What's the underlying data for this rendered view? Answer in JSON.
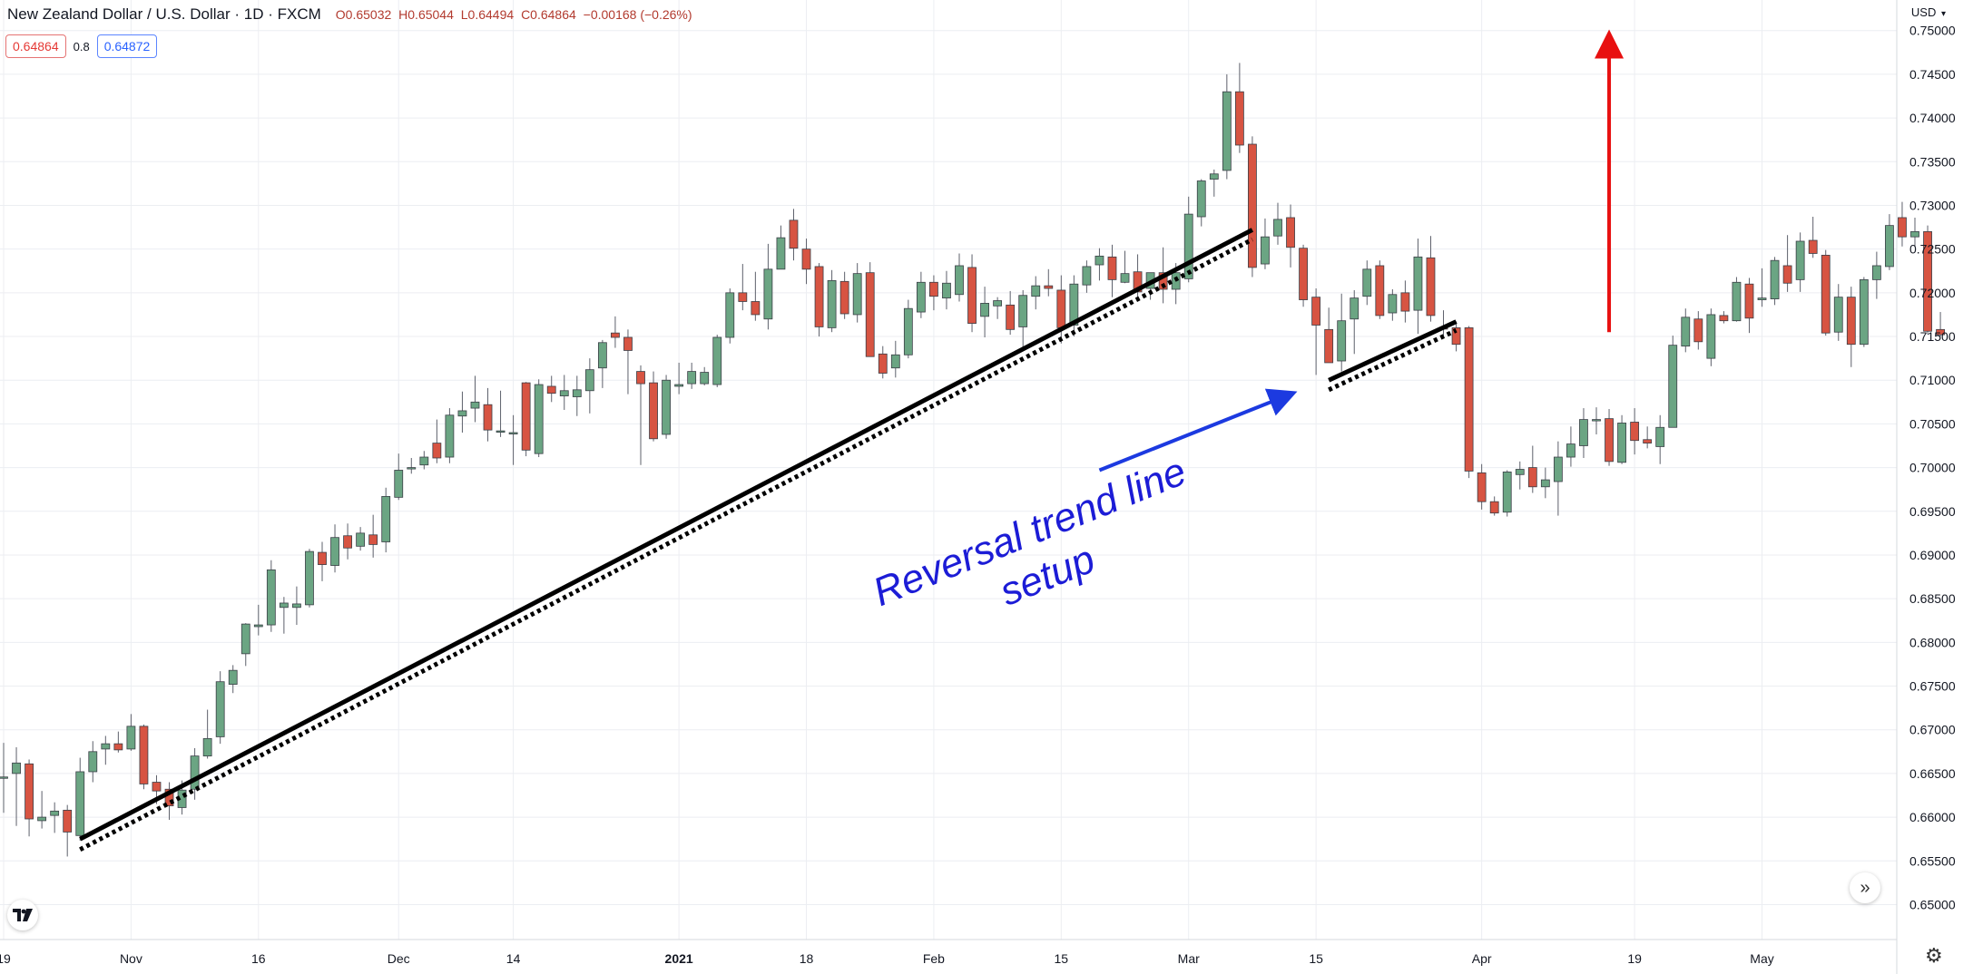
{
  "header": {
    "symbol_title": "New Zealand Dollar / U.S. Dollar · 1D · FXCM",
    "ohlc": {
      "open": "O0.65032",
      "high": "H0.65044",
      "low": "L0.64494",
      "close": "C0.64864",
      "change": "−0.00168 (−0.26%)"
    },
    "sell_price": "0.64864",
    "spread": "0.8",
    "buy_price": "0.64872"
  },
  "currency_label": "USD",
  "icons": {
    "currency_dropdown": "chevron-down-icon",
    "logo": "tradingview-logo-icon",
    "scroll": "scroll-to-realtime-icon",
    "settings": "gear-icon"
  },
  "colors": {
    "up_candle": "#6ba583",
    "down_candle": "#d75442",
    "wick": "#5d606b",
    "trendline": "#000000",
    "annotation_text": "#1c1cd6",
    "annotation_arrow": "#1c3ae0",
    "target_arrow": "#e81010",
    "grid": "#eceef2"
  },
  "chart_data": {
    "type": "candlestick",
    "title": "",
    "symbol": "NZD/USD",
    "timeframe": "1D",
    "y_axis": {
      "ylim": [
        0.646,
        0.7535
      ],
      "ticks": [
        "0.75000",
        "0.74500",
        "0.74000",
        "0.73500",
        "0.73000",
        "0.72500",
        "0.72000",
        "0.71500",
        "0.71000",
        "0.70500",
        "0.70000",
        "0.69500",
        "0.69000",
        "0.68500",
        "0.68000",
        "0.67500",
        "0.67000",
        "0.66500",
        "0.66000",
        "0.65500",
        "0.65000"
      ],
      "side": "right",
      "grid": true
    },
    "x_axis": {
      "ticks": [
        {
          "label": "19",
          "bar": 0,
          "bold": false
        },
        {
          "label": "Nov",
          "bar": 10,
          "bold": false
        },
        {
          "label": "16",
          "bar": 20,
          "bold": false
        },
        {
          "label": "Dec",
          "bar": 31,
          "bold": false
        },
        {
          "label": "14",
          "bar": 40,
          "bold": false
        },
        {
          "label": "2021",
          "bar": 53,
          "bold": true
        },
        {
          "label": "18",
          "bar": 63,
          "bold": false
        },
        {
          "label": "Feb",
          "bar": 73,
          "bold": false
        },
        {
          "label": "15",
          "bar": 83,
          "bold": false
        },
        {
          "label": "Mar",
          "bar": 93,
          "bold": false
        },
        {
          "label": "15",
          "bar": 103,
          "bold": false
        },
        {
          "label": "Apr",
          "bar": 116,
          "bold": false
        },
        {
          "label": "19",
          "bar": 128,
          "bold": false
        },
        {
          "label": "May",
          "bar": 138,
          "bold": false
        }
      ],
      "grid": true
    },
    "candles": [
      {
        "o": 0.6645,
        "h": 0.6685,
        "l": 0.6605,
        "c": 0.6646
      },
      {
        "o": 0.665,
        "h": 0.668,
        "l": 0.659,
        "c": 0.6662
      },
      {
        "o": 0.6661,
        "h": 0.6666,
        "l": 0.6578,
        "c": 0.6598
      },
      {
        "o": 0.6596,
        "h": 0.663,
        "l": 0.6587,
        "c": 0.66
      },
      {
        "o": 0.6602,
        "h": 0.6617,
        "l": 0.6582,
        "c": 0.6607
      },
      {
        "o": 0.6608,
        "h": 0.6614,
        "l": 0.6555,
        "c": 0.6583
      },
      {
        "o": 0.6579,
        "h": 0.6668,
        "l": 0.6573,
        "c": 0.6652
      },
      {
        "o": 0.6652,
        "h": 0.6687,
        "l": 0.664,
        "c": 0.6675
      },
      {
        "o": 0.6678,
        "h": 0.6693,
        "l": 0.666,
        "c": 0.6684
      },
      {
        "o": 0.6684,
        "h": 0.6698,
        "l": 0.6674,
        "c": 0.6677
      },
      {
        "o": 0.6678,
        "h": 0.6718,
        "l": 0.6676,
        "c": 0.6704
      },
      {
        "o": 0.6704,
        "h": 0.6706,
        "l": 0.6632,
        "c": 0.6638
      },
      {
        "o": 0.664,
        "h": 0.6648,
        "l": 0.6615,
        "c": 0.663
      },
      {
        "o": 0.6632,
        "h": 0.664,
        "l": 0.6597,
        "c": 0.6613
      },
      {
        "o": 0.6611,
        "h": 0.6642,
        "l": 0.6603,
        "c": 0.6631
      },
      {
        "o": 0.6632,
        "h": 0.6679,
        "l": 0.662,
        "c": 0.667
      },
      {
        "o": 0.667,
        "h": 0.6723,
        "l": 0.6667,
        "c": 0.669
      },
      {
        "o": 0.6692,
        "h": 0.6767,
        "l": 0.6684,
        "c": 0.6755
      },
      {
        "o": 0.6752,
        "h": 0.6774,
        "l": 0.6742,
        "c": 0.6768
      },
      {
        "o": 0.6787,
        "h": 0.6822,
        "l": 0.6773,
        "c": 0.6821
      },
      {
        "o": 0.6818,
        "h": 0.6843,
        "l": 0.6808,
        "c": 0.682
      },
      {
        "o": 0.682,
        "h": 0.6894,
        "l": 0.6812,
        "c": 0.6883
      },
      {
        "o": 0.684,
        "h": 0.6852,
        "l": 0.681,
        "c": 0.6845
      },
      {
        "o": 0.684,
        "h": 0.6864,
        "l": 0.682,
        "c": 0.6844
      },
      {
        "o": 0.6843,
        "h": 0.6907,
        "l": 0.684,
        "c": 0.6904
      },
      {
        "o": 0.6903,
        "h": 0.6915,
        "l": 0.687,
        "c": 0.6889
      },
      {
        "o": 0.6888,
        "h": 0.6935,
        "l": 0.688,
        "c": 0.692
      },
      {
        "o": 0.6922,
        "h": 0.6936,
        "l": 0.6895,
        "c": 0.6908
      },
      {
        "o": 0.691,
        "h": 0.6932,
        "l": 0.6905,
        "c": 0.6925
      },
      {
        "o": 0.6923,
        "h": 0.6946,
        "l": 0.6897,
        "c": 0.6912
      },
      {
        "o": 0.6915,
        "h": 0.6977,
        "l": 0.6903,
        "c": 0.6967
      },
      {
        "o": 0.6966,
        "h": 0.7016,
        "l": 0.6963,
        "c": 0.6997
      },
      {
        "o": 0.6999,
        "h": 0.7011,
        "l": 0.6993,
        "c": 0.7
      },
      {
        "o": 0.7003,
        "h": 0.7019,
        "l": 0.6998,
        "c": 0.7012
      },
      {
        "o": 0.7028,
        "h": 0.7055,
        "l": 0.7005,
        "c": 0.7011
      },
      {
        "o": 0.7012,
        "h": 0.7068,
        "l": 0.7005,
        "c": 0.706
      },
      {
        "o": 0.7059,
        "h": 0.7087,
        "l": 0.704,
        "c": 0.7065
      },
      {
        "o": 0.7068,
        "h": 0.7105,
        "l": 0.7052,
        "c": 0.7075
      },
      {
        "o": 0.7072,
        "h": 0.7091,
        "l": 0.703,
        "c": 0.7043
      },
      {
        "o": 0.7041,
        "h": 0.7088,
        "l": 0.7035,
        "c": 0.7042
      },
      {
        "o": 0.704,
        "h": 0.706,
        "l": 0.7003,
        "c": 0.704
      },
      {
        "o": 0.7097,
        "h": 0.7098,
        "l": 0.7013,
        "c": 0.702
      },
      {
        "o": 0.7016,
        "h": 0.7101,
        "l": 0.7012,
        "c": 0.7095
      },
      {
        "o": 0.7093,
        "h": 0.7105,
        "l": 0.7075,
        "c": 0.7085
      },
      {
        "o": 0.7082,
        "h": 0.7106,
        "l": 0.7066,
        "c": 0.7088
      },
      {
        "o": 0.7081,
        "h": 0.7105,
        "l": 0.7059,
        "c": 0.7089
      },
      {
        "o": 0.7088,
        "h": 0.7125,
        "l": 0.7062,
        "c": 0.7112
      },
      {
        "o": 0.7114,
        "h": 0.7146,
        "l": 0.7091,
        "c": 0.7143
      },
      {
        "o": 0.7154,
        "h": 0.7173,
        "l": 0.7137,
        "c": 0.7149
      },
      {
        "o": 0.7149,
        "h": 0.7158,
        "l": 0.7084,
        "c": 0.7134
      },
      {
        "o": 0.711,
        "h": 0.7117,
        "l": 0.7003,
        "c": 0.7096
      },
      {
        "o": 0.7097,
        "h": 0.711,
        "l": 0.703,
        "c": 0.7033
      },
      {
        "o": 0.7038,
        "h": 0.7106,
        "l": 0.7033,
        "c": 0.71
      },
      {
        "o": 0.7093,
        "h": 0.712,
        "l": 0.7084,
        "c": 0.7095
      },
      {
        "o": 0.7096,
        "h": 0.712,
        "l": 0.709,
        "c": 0.711
      },
      {
        "o": 0.7096,
        "h": 0.7115,
        "l": 0.7094,
        "c": 0.7109
      },
      {
        "o": 0.7095,
        "h": 0.7152,
        "l": 0.7092,
        "c": 0.7149
      },
      {
        "o": 0.7149,
        "h": 0.7205,
        "l": 0.7142,
        "c": 0.72
      },
      {
        "o": 0.72,
        "h": 0.7233,
        "l": 0.718,
        "c": 0.719
      },
      {
        "o": 0.719,
        "h": 0.7224,
        "l": 0.7168,
        "c": 0.7175
      },
      {
        "o": 0.717,
        "h": 0.7256,
        "l": 0.7158,
        "c": 0.7227
      },
      {
        "o": 0.7227,
        "h": 0.7277,
        "l": 0.7227,
        "c": 0.7263
      },
      {
        "o": 0.7283,
        "h": 0.7296,
        "l": 0.7237,
        "c": 0.7251
      },
      {
        "o": 0.725,
        "h": 0.7262,
        "l": 0.721,
        "c": 0.7227
      },
      {
        "o": 0.723,
        "h": 0.7234,
        "l": 0.715,
        "c": 0.7161
      },
      {
        "o": 0.716,
        "h": 0.7226,
        "l": 0.7155,
        "c": 0.7214
      },
      {
        "o": 0.7213,
        "h": 0.7224,
        "l": 0.717,
        "c": 0.7176
      },
      {
        "o": 0.7175,
        "h": 0.7234,
        "l": 0.7166,
        "c": 0.7222
      },
      {
        "o": 0.7223,
        "h": 0.7235,
        "l": 0.7134,
        "c": 0.7127
      },
      {
        "o": 0.713,
        "h": 0.7139,
        "l": 0.7102,
        "c": 0.7108
      },
      {
        "o": 0.7114,
        "h": 0.7145,
        "l": 0.7103,
        "c": 0.7129
      },
      {
        "o": 0.7129,
        "h": 0.7192,
        "l": 0.7125,
        "c": 0.7182
      },
      {
        "o": 0.7178,
        "h": 0.7224,
        "l": 0.7171,
        "c": 0.7212
      },
      {
        "o": 0.7212,
        "h": 0.722,
        "l": 0.718,
        "c": 0.7196
      },
      {
        "o": 0.7194,
        "h": 0.7225,
        "l": 0.7181,
        "c": 0.7211
      },
      {
        "o": 0.7198,
        "h": 0.7245,
        "l": 0.719,
        "c": 0.7231
      },
      {
        "o": 0.7229,
        "h": 0.7244,
        "l": 0.7155,
        "c": 0.7165
      },
      {
        "o": 0.7173,
        "h": 0.7207,
        "l": 0.7149,
        "c": 0.7188
      },
      {
        "o": 0.7185,
        "h": 0.7195,
        "l": 0.717,
        "c": 0.7191
      },
      {
        "o": 0.7186,
        "h": 0.7202,
        "l": 0.7152,
        "c": 0.7158
      },
      {
        "o": 0.7161,
        "h": 0.7203,
        "l": 0.7136,
        "c": 0.7197
      },
      {
        "o": 0.7196,
        "h": 0.7219,
        "l": 0.7181,
        "c": 0.7208
      },
      {
        "o": 0.7208,
        "h": 0.7227,
        "l": 0.7196,
        "c": 0.7205
      },
      {
        "o": 0.7203,
        "h": 0.722,
        "l": 0.7142,
        "c": 0.716
      },
      {
        "o": 0.7163,
        "h": 0.722,
        "l": 0.715,
        "c": 0.721
      },
      {
        "o": 0.7209,
        "h": 0.7237,
        "l": 0.72,
        "c": 0.723
      },
      {
        "o": 0.7232,
        "h": 0.7251,
        "l": 0.7214,
        "c": 0.7242
      },
      {
        "o": 0.7241,
        "h": 0.7255,
        "l": 0.7195,
        "c": 0.7215
      },
      {
        "o": 0.7212,
        "h": 0.7248,
        "l": 0.7211,
        "c": 0.7222
      },
      {
        "o": 0.7224,
        "h": 0.7244,
        "l": 0.7193,
        "c": 0.7201
      },
      {
        "o": 0.7205,
        "h": 0.7222,
        "l": 0.7192,
        "c": 0.7223
      },
      {
        "o": 0.7223,
        "h": 0.7252,
        "l": 0.7188,
        "c": 0.7204
      },
      {
        "o": 0.7204,
        "h": 0.7234,
        "l": 0.7187,
        "c": 0.7223
      },
      {
        "o": 0.7216,
        "h": 0.731,
        "l": 0.7212,
        "c": 0.729
      },
      {
        "o": 0.7287,
        "h": 0.733,
        "l": 0.7276,
        "c": 0.7328
      },
      {
        "o": 0.733,
        "h": 0.7341,
        "l": 0.731,
        "c": 0.7336
      },
      {
        "o": 0.734,
        "h": 0.745,
        "l": 0.733,
        "c": 0.743
      },
      {
        "o": 0.743,
        "h": 0.7463,
        "l": 0.736,
        "c": 0.7369
      },
      {
        "o": 0.737,
        "h": 0.7379,
        "l": 0.7218,
        "c": 0.7229
      },
      {
        "o": 0.7233,
        "h": 0.7285,
        "l": 0.7227,
        "c": 0.7264
      },
      {
        "o": 0.7265,
        "h": 0.7303,
        "l": 0.7255,
        "c": 0.7284
      },
      {
        "o": 0.7286,
        "h": 0.7301,
        "l": 0.7229,
        "c": 0.7252
      },
      {
        "o": 0.7251,
        "h": 0.7255,
        "l": 0.7184,
        "c": 0.7192
      },
      {
        "o": 0.7195,
        "h": 0.7205,
        "l": 0.7106,
        "c": 0.7163
      },
      {
        "o": 0.7158,
        "h": 0.7183,
        "l": 0.712,
        "c": 0.712
      },
      {
        "o": 0.7122,
        "h": 0.7199,
        "l": 0.711,
        "c": 0.7168
      },
      {
        "o": 0.717,
        "h": 0.7203,
        "l": 0.713,
        "c": 0.7194
      },
      {
        "o": 0.7196,
        "h": 0.7237,
        "l": 0.7186,
        "c": 0.7227
      },
      {
        "o": 0.7231,
        "h": 0.7237,
        "l": 0.717,
        "c": 0.7174
      },
      {
        "o": 0.7177,
        "h": 0.7204,
        "l": 0.7168,
        "c": 0.7198
      },
      {
        "o": 0.72,
        "h": 0.7214,
        "l": 0.7166,
        "c": 0.7179
      },
      {
        "o": 0.718,
        "h": 0.7262,
        "l": 0.7153,
        "c": 0.7241
      },
      {
        "o": 0.724,
        "h": 0.7265,
        "l": 0.7167,
        "c": 0.7174
      },
      {
        "o": 0.716,
        "h": 0.718,
        "l": 0.7151,
        "c": 0.7159
      },
      {
        "o": 0.716,
        "h": 0.7167,
        "l": 0.7133,
        "c": 0.7141
      },
      {
        "o": 0.716,
        "h": 0.7162,
        "l": 0.6988,
        "c": 0.6996
      },
      {
        "o": 0.6994,
        "h": 0.7004,
        "l": 0.6952,
        "c": 0.6961
      },
      {
        "o": 0.6961,
        "h": 0.6967,
        "l": 0.6945,
        "c": 0.6948
      },
      {
        "o": 0.6949,
        "h": 0.6997,
        "l": 0.6944,
        "c": 0.6995
      },
      {
        "o": 0.6992,
        "h": 0.7007,
        "l": 0.6975,
        "c": 0.6998
      },
      {
        "o": 0.7,
        "h": 0.7025,
        "l": 0.6971,
        "c": 0.6978
      },
      {
        "o": 0.6978,
        "h": 0.7,
        "l": 0.6965,
        "c": 0.6986
      },
      {
        "o": 0.6984,
        "h": 0.703,
        "l": 0.6945,
        "c": 0.7012
      },
      {
        "o": 0.7012,
        "h": 0.7047,
        "l": 0.7001,
        "c": 0.7027
      },
      {
        "o": 0.7025,
        "h": 0.7068,
        "l": 0.7011,
        "c": 0.7055
      },
      {
        "o": 0.7055,
        "h": 0.7069,
        "l": 0.7038,
        "c": 0.7055
      },
      {
        "o": 0.7056,
        "h": 0.7067,
        "l": 0.7002,
        "c": 0.7007
      },
      {
        "o": 0.7006,
        "h": 0.706,
        "l": 0.7004,
        "c": 0.7051
      },
      {
        "o": 0.7052,
        "h": 0.7068,
        "l": 0.7015,
        "c": 0.7031
      },
      {
        "o": 0.7032,
        "h": 0.7047,
        "l": 0.7022,
        "c": 0.7028
      },
      {
        "o": 0.7024,
        "h": 0.706,
        "l": 0.7004,
        "c": 0.7046
      },
      {
        "o": 0.7046,
        "h": 0.7151,
        "l": 0.7046,
        "c": 0.714
      },
      {
        "o": 0.7139,
        "h": 0.7182,
        "l": 0.7132,
        "c": 0.7172
      },
      {
        "o": 0.717,
        "h": 0.7179,
        "l": 0.7135,
        "c": 0.7144
      },
      {
        "o": 0.7125,
        "h": 0.7182,
        "l": 0.7116,
        "c": 0.7175
      },
      {
        "o": 0.7174,
        "h": 0.7179,
        "l": 0.7165,
        "c": 0.7168
      },
      {
        "o": 0.7168,
        "h": 0.7218,
        "l": 0.7167,
        "c": 0.7212
      },
      {
        "o": 0.721,
        "h": 0.7217,
        "l": 0.7154,
        "c": 0.7171
      },
      {
        "o": 0.7192,
        "h": 0.7228,
        "l": 0.7184,
        "c": 0.7194
      },
      {
        "o": 0.7193,
        "h": 0.7241,
        "l": 0.7186,
        "c": 0.7237
      },
      {
        "o": 0.7231,
        "h": 0.7266,
        "l": 0.7201,
        "c": 0.7211
      },
      {
        "o": 0.7215,
        "h": 0.7269,
        "l": 0.7201,
        "c": 0.7259
      },
      {
        "o": 0.726,
        "h": 0.7287,
        "l": 0.724,
        "c": 0.7245
      },
      {
        "o": 0.7243,
        "h": 0.7249,
        "l": 0.7151,
        "c": 0.7154
      },
      {
        "o": 0.7155,
        "h": 0.721,
        "l": 0.7145,
        "c": 0.7195
      },
      {
        "o": 0.7195,
        "h": 0.7207,
        "l": 0.7115,
        "c": 0.7141
      },
      {
        "o": 0.7141,
        "h": 0.7218,
        "l": 0.7138,
        "c": 0.7215
      },
      {
        "o": 0.7215,
        "h": 0.7247,
        "l": 0.7193,
        "c": 0.7231
      },
      {
        "o": 0.723,
        "h": 0.729,
        "l": 0.7226,
        "c": 0.7277
      },
      {
        "o": 0.7286,
        "h": 0.7304,
        "l": 0.7253,
        "c": 0.7264
      },
      {
        "o": 0.7264,
        "h": 0.7286,
        "l": 0.7253,
        "c": 0.727
      },
      {
        "o": 0.727,
        "h": 0.7277,
        "l": 0.7152,
        "c": 0.7156
      },
      {
        "o": 0.7158,
        "h": 0.7178,
        "l": 0.715,
        "c": 0.7152
      }
    ],
    "trendlines": [
      {
        "style": "solid",
        "from": {
          "bar": 6,
          "price": 0.6575
        },
        "to": {
          "bar": 98,
          "price": 0.7272
        }
      },
      {
        "style": "dotted",
        "from": {
          "bar": 6,
          "price": 0.6563
        },
        "to": {
          "bar": 98,
          "price": 0.7261
        }
      },
      {
        "style": "solid",
        "from": {
          "bar": 104,
          "price": 0.71
        },
        "to": {
          "bar": 114,
          "price": 0.7167
        }
      },
      {
        "style": "dotted",
        "from": {
          "bar": 104,
          "price": 0.7089
        },
        "to": {
          "bar": 114,
          "price": 0.7157
        }
      }
    ],
    "annotations": {
      "label_line1": "Reversal trend line",
      "label_line2": "setup",
      "pointer_arrow": {
        "from": {
          "bar": 86,
          "price": 0.6997
        },
        "to": {
          "bar": 101,
          "price": 0.7084
        }
      },
      "target_arrow": {
        "bar": 126,
        "from_price": 0.7155,
        "to_price": 0.7493
      }
    }
  }
}
